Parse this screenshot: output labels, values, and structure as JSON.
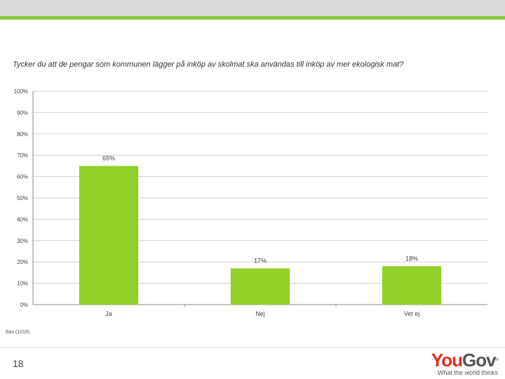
{
  "question": "Tycker du att de pengar som kommunen lägger på inköp av skolmat ska användas till inköp av mer ekologisk mat?",
  "base_note": "Bas (1018)",
  "page_number": "18",
  "logo": {
    "you": "You",
    "gov": "Gov",
    "registered": "®",
    "tagline": "What the world thinks"
  },
  "colors": {
    "accent": "#8dc63f",
    "bar": "#92d02a",
    "header_band": "#d9d9d9"
  },
  "chart_data": {
    "type": "bar",
    "title": "Tycker du att de pengar som kommunen lägger på inköp av skolmat ska användas till inköp av mer ekologisk mat?",
    "categories": [
      "Ja",
      "Nej",
      "Vet ej"
    ],
    "values": [
      65,
      17,
      18
    ],
    "data_labels": [
      "65%",
      "17%",
      "18%"
    ],
    "ylim": [
      0,
      100
    ],
    "yticks": [
      "0%",
      "10%",
      "20%",
      "30%",
      "40%",
      "50%",
      "60%",
      "70%",
      "80%",
      "90%",
      "100%"
    ],
    "grid": true,
    "xlabel": "",
    "ylabel": ""
  }
}
